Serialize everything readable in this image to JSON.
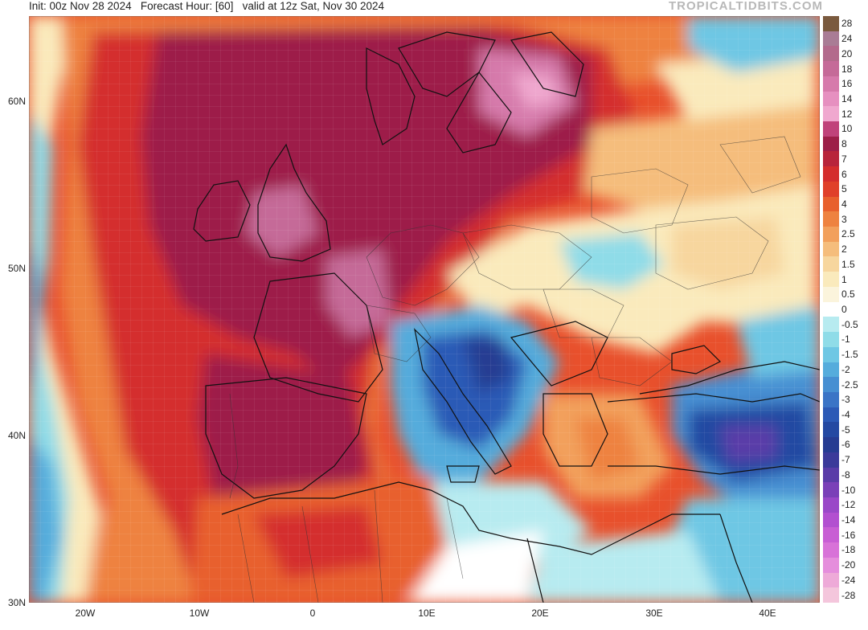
{
  "header": {
    "left": "Init: 00z Nov 28 2024   Forecast Hour: [60]   valid at 12z Sat, Nov 30 2024",
    "right": "TROPICALTIDBITS.COM"
  },
  "map": {
    "latitude_labels": [
      "60N",
      "50N",
      "40N",
      "30N"
    ],
    "longitude_labels": [
      "20W",
      "10W",
      "0",
      "10E",
      "20E",
      "30E",
      "40E"
    ]
  },
  "colorbar": {
    "labels": [
      "28",
      "24",
      "20",
      "18",
      "16",
      "14",
      "12",
      "10",
      "8",
      "7",
      "6",
      "5",
      "4",
      "3",
      "2.5",
      "2",
      "1.5",
      "1",
      "0.5",
      "0",
      "-0.5",
      "-1",
      "-1.5",
      "-2",
      "-2.5",
      "-3",
      "-4",
      "-5",
      "-6",
      "-7",
      "-8",
      "-10",
      "-12",
      "-14",
      "-16",
      "-18",
      "-20",
      "-24",
      "-28"
    ],
    "colors": [
      "#7a5a3e",
      "#a97c95",
      "#b36a8c",
      "#c56a98",
      "#d67aab",
      "#e690c0",
      "#f0a8cf",
      "#c0427a",
      "#9d1e48",
      "#b8243b",
      "#d42d2d",
      "#e0402a",
      "#e8602d",
      "#ee8240",
      "#f2a05c",
      "#f5bd7c",
      "#f7d69e",
      "#faeabc",
      "#fbf4dc",
      "#ffffff",
      "#b7ebf0",
      "#8fdce8",
      "#6ec7e4",
      "#55acdc",
      "#468fd2",
      "#3a74c6",
      "#2c5ab6",
      "#2449a2",
      "#263c92",
      "#3b3a9a",
      "#5a3ca8",
      "#7a40b8",
      "#9a48c8",
      "#b24fd0",
      "#c85ed4",
      "#d872d8",
      "#e58edc",
      "#eeaad8",
      "#f4c6dc"
    ]
  }
}
